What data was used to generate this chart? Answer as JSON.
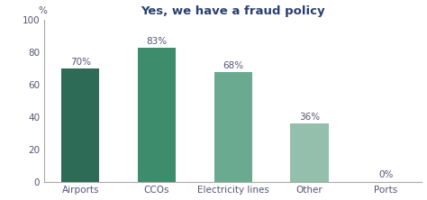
{
  "title": "Yes, we have a fraud policy",
  "categories": [
    "Airports",
    "CCOs",
    "Electricity lines",
    "Other",
    "Ports"
  ],
  "values": [
    70,
    83,
    68,
    36,
    0
  ],
  "bar_colors": [
    "#2e6b57",
    "#3d8c6b",
    "#6aaa90",
    "#93bfac",
    "#b5d2c5"
  ],
  "ylim": [
    0,
    100
  ],
  "yticks": [
    0,
    20,
    40,
    60,
    80,
    100
  ],
  "bar_labels": [
    "70%",
    "83%",
    "68%",
    "36%",
    "0%"
  ],
  "title_fontsize": 9.5,
  "tick_fontsize": 7.5,
  "label_fontsize": 7.5,
  "background_color": "#ffffff",
  "bar_width": 0.5,
  "title_color": "#2a3f6f",
  "tick_color": "#555577",
  "label_color": "#555577"
}
